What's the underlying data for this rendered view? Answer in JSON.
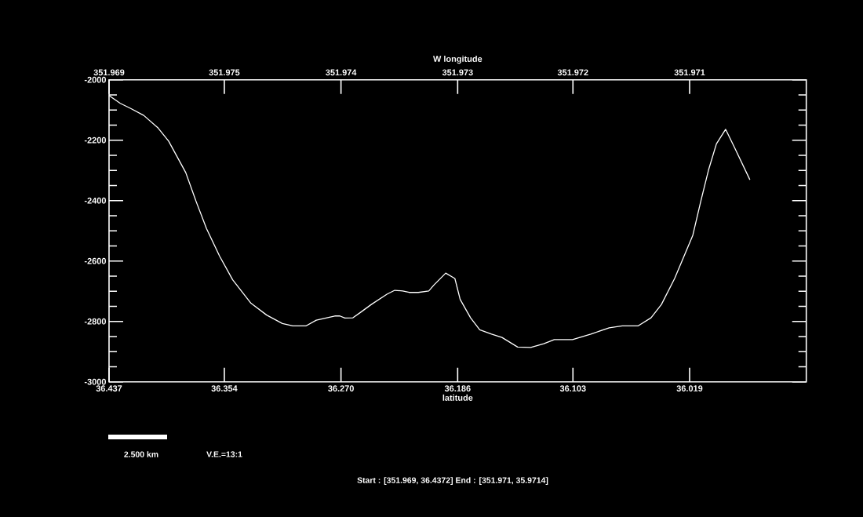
{
  "chart_data": {
    "type": "line",
    "xlabel": "latitude",
    "color": "#ffffff",
    "x": [
      36.437,
      36.4289,
      36.4214,
      36.412,
      36.4016,
      36.3941,
      36.3818,
      36.3743,
      36.3668,
      36.3574,
      36.348,
      36.3348,
      36.3235,
      36.3122,
      36.3047,
      36.2953,
      36.2878,
      36.2802,
      36.2745,
      36.2708,
      36.2672,
      36.2614,
      36.2559,
      36.2482,
      36.2369,
      36.2313,
      36.2256,
      36.2209,
      36.2143,
      36.2068,
      36.203,
      36.1946,
      36.188,
      36.1842,
      36.1767,
      36.1701,
      36.1616,
      36.1541,
      36.1428,
      36.1334,
      36.124,
      36.1164,
      36.1033,
      36.0901,
      36.0769,
      36.0675,
      36.0562,
      36.0468,
      36.0393,
      36.0298,
      36.0223,
      36.0167,
      36.011,
      36.0054,
      35.9997,
      35.9931,
      35.9866,
      35.9756
    ],
    "values": [
      -2052,
      -2078,
      -2095,
      -2118,
      -2160,
      -2203,
      -2307,
      -2403,
      -2493,
      -2584,
      -2662,
      -2740,
      -2779,
      -2807,
      -2815,
      -2815,
      -2796,
      -2788,
      -2782,
      -2782,
      -2789,
      -2788,
      -2770,
      -2744,
      -2710,
      -2697,
      -2699,
      -2704,
      -2704,
      -2699,
      -2679,
      -2640,
      -2658,
      -2727,
      -2788,
      -2828,
      -2842,
      -2853,
      -2885,
      -2886,
      -2874,
      -2860,
      -2860,
      -2842,
      -2821,
      -2815,
      -2815,
      -2788,
      -2744,
      -2658,
      -2576,
      -2515,
      -2403,
      -2299,
      -2212,
      -2164,
      -2225,
      -2331
    ],
    "xlim": [
      36.437,
      35.935
    ],
    "xticks": [
      36.437,
      36.354,
      {
        "value": 36.27,
        "label": "36.270"
      },
      36.186,
      36.103,
      36.019
    ],
    "ylim": [
      -3000,
      -2000
    ],
    "yticks": [
      -3000,
      -2800,
      -2600,
      -2400,
      -2200,
      -2000
    ],
    "annotations": [
      "2.500 km",
      "V.E.=13:1",
      "Start : [351.969, 36.4372]  End : [351.971, 35.9714]",
      "W longitude",
      "351.969",
      "351.975",
      "351.974",
      "351.973",
      "351.972",
      "351.971"
    ]
  }
}
